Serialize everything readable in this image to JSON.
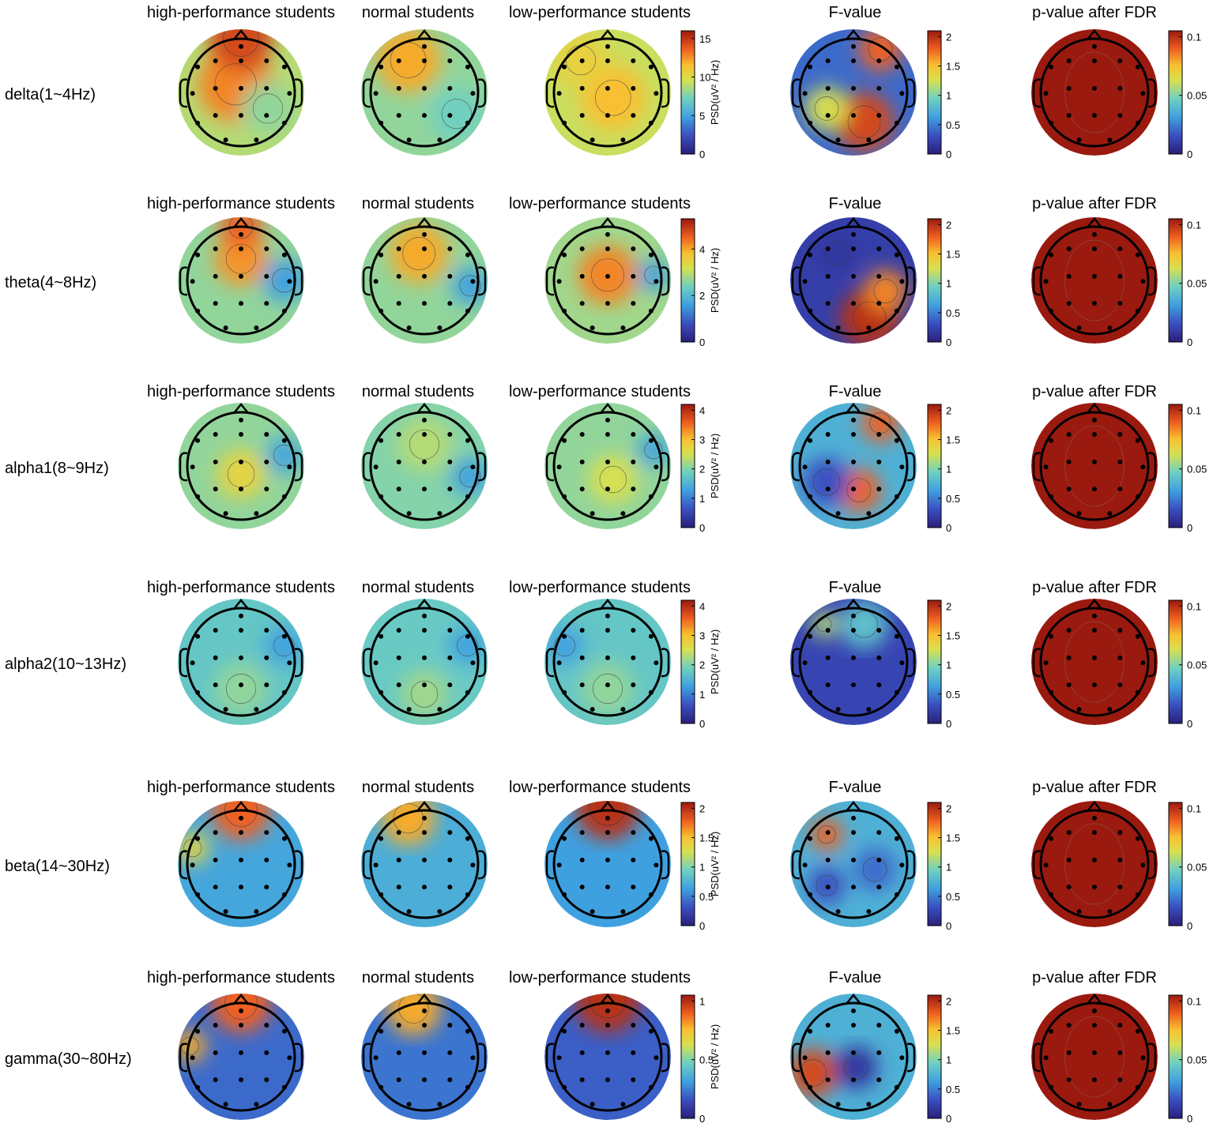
{
  "chart_data": {
    "type": "heatmap",
    "description_kind": "EEG topographic maps",
    "column_titles": [
      "high-performance students",
      "normal students",
      "low-performance students",
      "F-value",
      "p-value after FDR"
    ],
    "psd_colorbar_label": "PSD(uV² / Hz)",
    "colorscale": "jet",
    "rows": [
      {
        "band": "delta(1~4Hz)",
        "psd_ticks": [
          "0",
          "5",
          "10",
          "15"
        ],
        "psd_range": [
          0,
          16
        ],
        "f_ticks": [
          "0",
          "0.5",
          "1",
          "1.5",
          "2"
        ],
        "f_range": [
          0,
          2.1
        ],
        "p_ticks": [
          "0",
          "0.05",
          "0.1"
        ],
        "p_range": [
          0,
          0.105
        ]
      },
      {
        "band": "theta(4~8Hz)",
        "psd_ticks": [
          "0",
          "2",
          "4"
        ],
        "psd_range": [
          0,
          5.3
        ],
        "f_ticks": [
          "0",
          "0.5",
          "1",
          "1.5",
          "2"
        ],
        "f_range": [
          0,
          2.1
        ],
        "p_ticks": [
          "0",
          "0.05",
          "0.1"
        ],
        "p_range": [
          0,
          0.105
        ]
      },
      {
        "band": "alpha1(8~9Hz)",
        "psd_ticks": [
          "0",
          "1",
          "2",
          "3",
          "4"
        ],
        "psd_range": [
          0,
          4.2
        ],
        "f_ticks": [
          "0",
          "0.5",
          "1",
          "1.5",
          "2"
        ],
        "f_range": [
          0,
          2.1
        ],
        "p_ticks": [
          "0",
          "0.05",
          "0.1"
        ],
        "p_range": [
          0,
          0.105
        ]
      },
      {
        "band": "alpha2(10~13Hz)",
        "psd_ticks": [
          "0",
          "1",
          "2",
          "3",
          "4"
        ],
        "psd_range": [
          0,
          4.2
        ],
        "f_ticks": [
          "0",
          "0.5",
          "1",
          "1.5",
          "2"
        ],
        "f_range": [
          0,
          2.1
        ],
        "p_ticks": [
          "0",
          "0.05",
          "0.1"
        ],
        "p_range": [
          0,
          0.105
        ]
      },
      {
        "band": "beta(14~30Hz)",
        "psd_ticks": [
          "0",
          "0.5",
          "1",
          "1.5",
          "2"
        ],
        "psd_range": [
          0,
          2.1
        ],
        "f_ticks": [
          "0",
          "0.5",
          "1",
          "1.5",
          "2"
        ],
        "f_range": [
          0,
          2.1
        ],
        "p_ticks": [
          "0",
          "0.05",
          "0.1"
        ],
        "p_range": [
          0,
          0.105
        ]
      },
      {
        "band": "gamma(30~80Hz)",
        "psd_ticks": [
          "0",
          "0.5",
          "1"
        ],
        "psd_range": [
          0,
          1.05
        ],
        "f_ticks": [
          "0",
          "0.5",
          "1",
          "1.5",
          "2"
        ],
        "f_range": [
          0,
          2.1
        ],
        "p_ticks": [
          "0",
          "0.05",
          "0.1"
        ],
        "p_range": [
          0,
          0.105
        ]
      }
    ]
  }
}
